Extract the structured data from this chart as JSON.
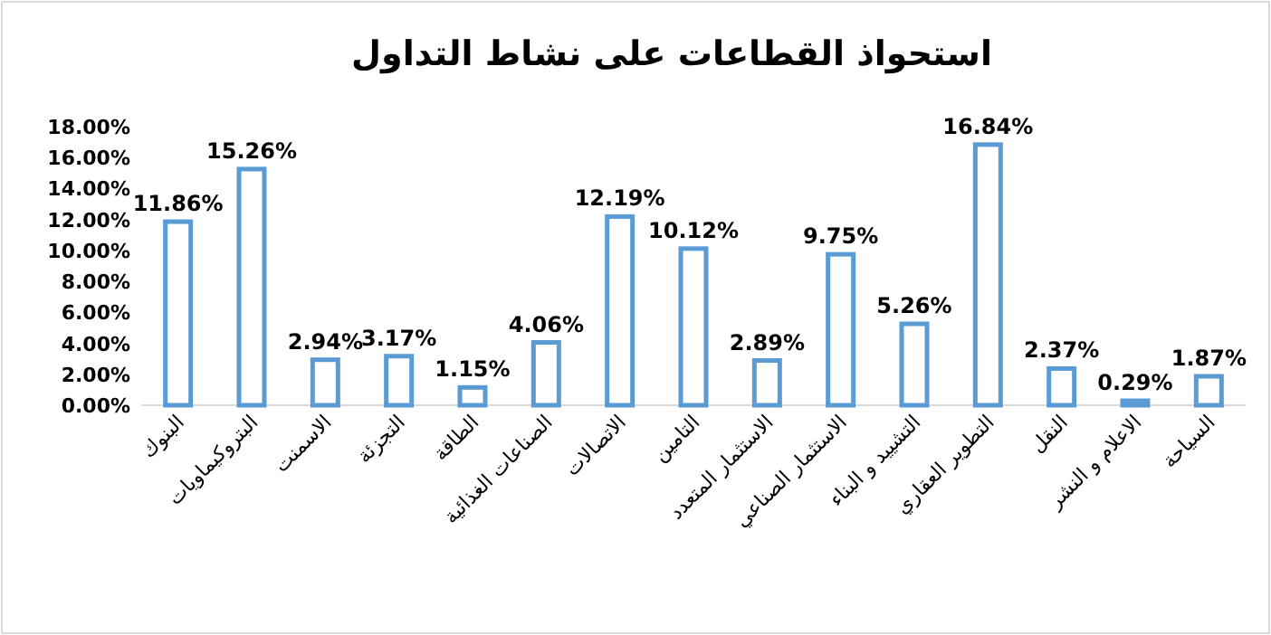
{
  "chart_data": {
    "type": "bar",
    "title": "استحواذ القطاعات على نشاط التداول",
    "categories": [
      "البنوك",
      "البتروكيماويات",
      "الاسمنت",
      "التجزئة",
      "الطاقة",
      "الصناعات الغذائية",
      "الاتصالات",
      "التامين",
      "الاستثمار المتعدد",
      "الاستثمار الصناعي",
      "التشييد و البناء",
      "التطوير العقاري",
      "النقل",
      "الاعلام و النشر",
      "السياحة"
    ],
    "values": [
      11.86,
      15.26,
      2.94,
      3.17,
      1.15,
      4.06,
      12.19,
      10.12,
      2.89,
      9.75,
      5.26,
      16.84,
      2.37,
      0.29,
      1.87
    ],
    "value_labels": [
      "11.86%",
      "15.26%",
      "2.94%",
      "3.17%",
      "1.15%",
      "4.06%",
      "12.19%",
      "10.12%",
      "2.89%",
      "9.75%",
      "5.26%",
      "16.84%",
      "2.37%",
      "0.29%",
      "1.87%"
    ],
    "color": "#5b9bd5",
    "ylim": [
      0,
      18
    ],
    "yticks": [
      {
        "value": 0,
        "label": "0.00%"
      },
      {
        "value": 2,
        "label": "2.00%"
      },
      {
        "value": 4,
        "label": "4.00%"
      },
      {
        "value": 6,
        "label": "6.00%"
      },
      {
        "value": 8,
        "label": "8.00%"
      },
      {
        "value": 10,
        "label": "10.00%"
      },
      {
        "value": 12,
        "label": "12.00%"
      },
      {
        "value": 14,
        "label": "14.00%"
      },
      {
        "value": 16,
        "label": "16.00%"
      },
      {
        "value": 18,
        "label": "18.00%"
      }
    ],
    "grid": false
  }
}
